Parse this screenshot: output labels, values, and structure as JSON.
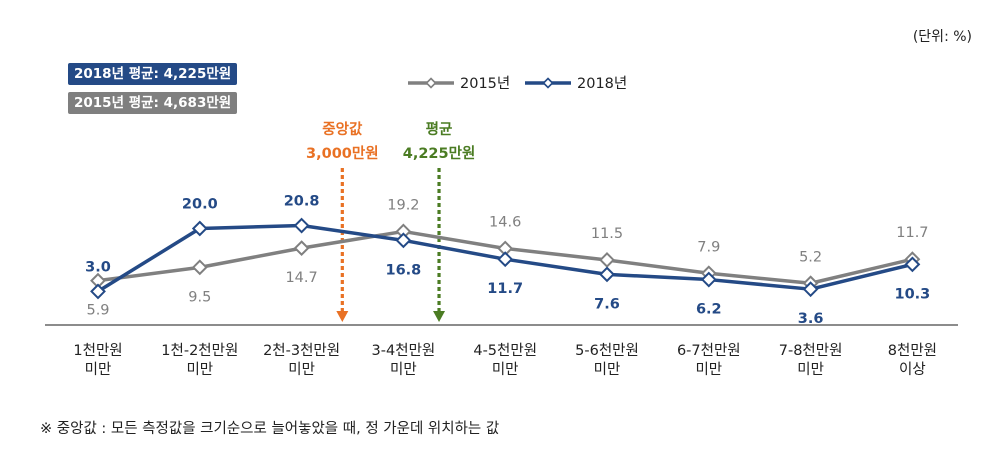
{
  "unit_label": "(단위: %)",
  "badges": {
    "avg_2018": "2018년 평균: 4,225만원",
    "avg_2015": "2015년 평균: 4,683만원"
  },
  "markers": {
    "median": {
      "label1": "중앙값",
      "label2": "3,000만원"
    },
    "mean": {
      "label1": "평균",
      "label2": "4,225만원"
    }
  },
  "footnote": "※ 중앙값 : 모든 측정값을 크기순으로 늘어놓았을 때, 정 가운데 위치하는 값",
  "colors": {
    "series_2015": "#808080",
    "series_2018": "#244a86",
    "median_marker": "#e97124",
    "mean_marker": "#4b7c23",
    "badge_2018": "#244a86",
    "badge_2015": "#7f7f7f"
  },
  "chart_data": {
    "type": "line",
    "categories": [
      [
        "1천만원",
        "미만"
      ],
      [
        "1천-2천만원",
        "미만"
      ],
      [
        "2천-3천만원",
        "미만"
      ],
      [
        "3-4천만원",
        "미만"
      ],
      [
        "4-5천만원",
        "미만"
      ],
      [
        "5-6천만원",
        "미만"
      ],
      [
        "6-7천만원",
        "미만"
      ],
      [
        "7-8천만원",
        "미만"
      ],
      [
        "8천만원",
        "이상"
      ]
    ],
    "series": [
      {
        "name": "2015년",
        "values": [
          5.9,
          9.5,
          14.7,
          19.2,
          14.6,
          11.5,
          7.9,
          5.2,
          11.7
        ]
      },
      {
        "name": "2018년",
        "values": [
          3.0,
          20.0,
          20.8,
          16.8,
          11.7,
          7.6,
          6.2,
          3.6,
          10.3
        ]
      }
    ],
    "value_labels": {
      "2015년": [
        "5.9",
        "9.5",
        "14.7",
        "19.2",
        "14.6",
        "11.5",
        "7.9",
        "5.2",
        "11.7"
      ],
      "2018년": [
        "3.0",
        "20.0",
        "20.8",
        "16.8",
        "11.7",
        "7.6",
        "6.2",
        "3.6",
        "10.3"
      ]
    },
    "median_category_position": 2.4,
    "mean_category_position": 3.35,
    "legend_position": "top-center"
  }
}
